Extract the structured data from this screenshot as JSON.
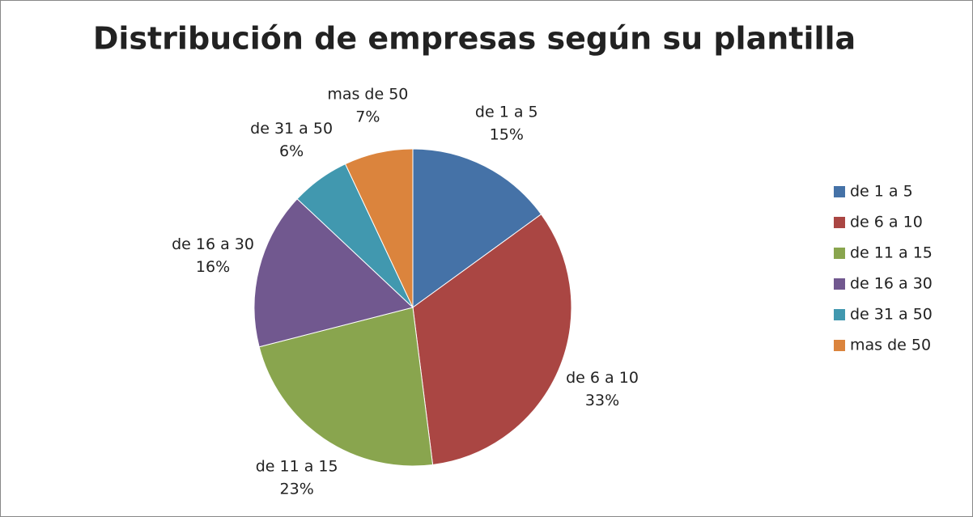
{
  "chart_data": {
    "type": "pie",
    "title": "Distribución de empresas según su plantilla",
    "categories": [
      "de 1 a 5",
      "de 6 a 10",
      "de 11 a 15",
      "de 16 a 30",
      "de 31 a 50",
      "mas de 50"
    ],
    "values": [
      15,
      33,
      23,
      16,
      6,
      7
    ],
    "value_labels": [
      "15%",
      "33%",
      "23%",
      "16%",
      "6%",
      "7%"
    ],
    "colors": [
      "#4572a7",
      "#aa4643",
      "#89a54e",
      "#71588f",
      "#4198af",
      "#db843d"
    ],
    "legend": "right"
  }
}
